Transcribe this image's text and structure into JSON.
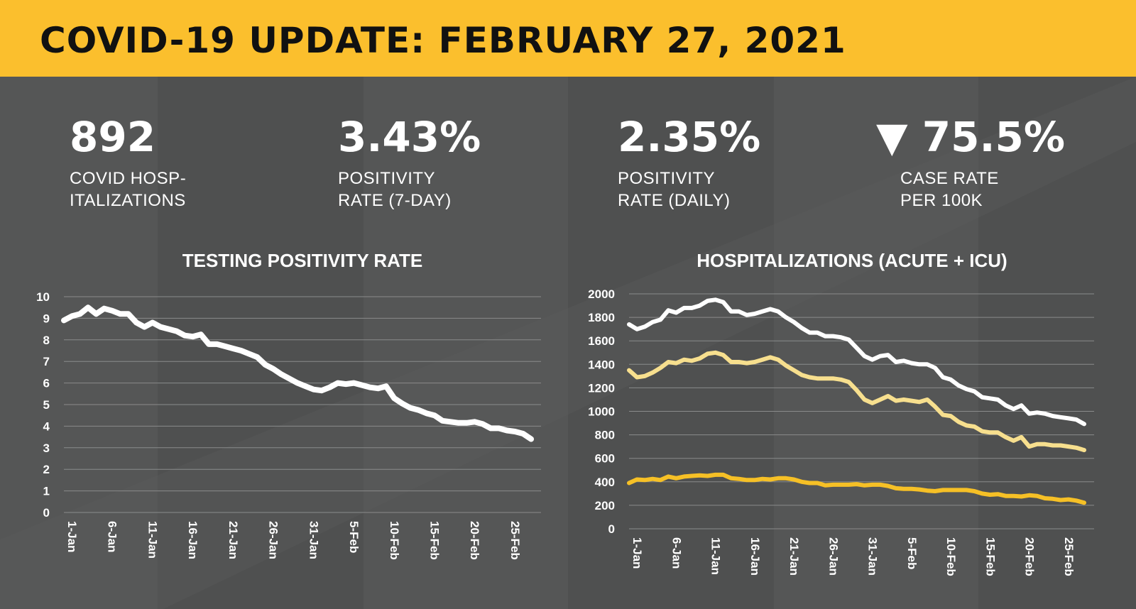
{
  "header": {
    "title": "COVID-19 UPDATE: FEBRUARY 27, 2021"
  },
  "colors": {
    "header_bg": "#fbbf2d",
    "page_bg": "#555656",
    "line_white": "#ffffff",
    "line_light_yellow": "#f7df8e",
    "line_yellow": "#f6c026"
  },
  "stats": [
    {
      "value": "892",
      "label_lines": [
        "COVID HOSP-",
        "ITALIZATIONS"
      ]
    },
    {
      "value": "3.43%",
      "label_lines": [
        "POSITIVITY",
        "RATE (7-DAY)"
      ]
    },
    {
      "value": "2.35%",
      "label_lines": [
        "POSITIVITY",
        "RATE (DAILY)"
      ]
    },
    {
      "value": "▼ 75.5%",
      "icon": "down-triangle-icon",
      "label_lines": [
        "CASE RATE",
        "PER 100K"
      ]
    }
  ],
  "chart_data": [
    {
      "type": "line",
      "title": "TESTING POSITIVITY RATE",
      "xlabel": "",
      "ylabel": "",
      "ylim": [
        0,
        10
      ],
      "yticks": [
        0,
        1,
        2,
        3,
        4,
        5,
        6,
        7,
        8,
        9,
        10
      ],
      "grid": true,
      "x_tick_labels": [
        "1-Jan",
        "6-Jan",
        "11-Jan",
        "16-Jan",
        "21-Jan",
        "26-Jan",
        "31-Jan",
        "5-Feb",
        "10-Feb",
        "15-Feb",
        "20-Feb",
        "25-Feb"
      ],
      "x_start": "1-Jan",
      "series": [
        {
          "color": "#ffffff",
          "values": [
            8.9,
            9.1,
            9.2,
            9.5,
            9.2,
            9.45,
            9.35,
            9.2,
            9.2,
            8.8,
            8.6,
            8.8,
            8.6,
            8.5,
            8.4,
            8.2,
            8.15,
            8.25,
            7.8,
            7.8,
            7.7,
            7.6,
            7.5,
            7.35,
            7.2,
            6.85,
            6.65,
            6.4,
            6.2,
            6.0,
            5.85,
            5.7,
            5.65,
            5.8,
            6.0,
            5.95,
            6.0,
            5.9,
            5.8,
            5.75,
            5.85,
            5.3,
            5.05,
            4.85,
            4.75,
            4.6,
            4.5,
            4.25,
            4.2,
            4.15,
            4.15,
            4.2,
            4.1,
            3.9,
            3.9,
            3.8,
            3.75,
            3.65,
            3.4
          ]
        }
      ]
    },
    {
      "type": "line",
      "title": "HOSPITALIZATIONS (ACUTE + ICU)",
      "xlabel": "",
      "ylabel": "",
      "ylim": [
        0,
        2000
      ],
      "yticks": [
        0,
        200,
        400,
        600,
        800,
        1000,
        1200,
        1400,
        1600,
        1800,
        2000
      ],
      "grid": true,
      "x_tick_labels": [
        "1-Jan",
        "6-Jan",
        "11-Jan",
        "16-Jan",
        "21-Jan",
        "26-Jan",
        "31-Jan",
        "5-Feb",
        "10-Feb",
        "15-Feb",
        "20-Feb",
        "25-Feb"
      ],
      "x_start": "1-Jan",
      "series": [
        {
          "color": "#ffffff",
          "values": [
            1740,
            1700,
            1720,
            1760,
            1780,
            1860,
            1840,
            1880,
            1880,
            1900,
            1940,
            1950,
            1930,
            1850,
            1850,
            1820,
            1830,
            1850,
            1870,
            1850,
            1800,
            1760,
            1710,
            1670,
            1670,
            1640,
            1640,
            1630,
            1610,
            1540,
            1470,
            1440,
            1470,
            1480,
            1420,
            1430,
            1410,
            1400,
            1400,
            1370,
            1290,
            1270,
            1220,
            1190,
            1170,
            1120,
            1110,
            1100,
            1050,
            1020,
            1050,
            980,
            990,
            980,
            960,
            950,
            940,
            930,
            892
          ]
        },
        {
          "color": "#f7df8e",
          "values": [
            1350,
            1290,
            1300,
            1330,
            1370,
            1420,
            1410,
            1440,
            1430,
            1450,
            1490,
            1500,
            1480,
            1420,
            1420,
            1410,
            1420,
            1440,
            1460,
            1440,
            1390,
            1350,
            1310,
            1290,
            1280,
            1280,
            1280,
            1270,
            1250,
            1180,
            1100,
            1070,
            1100,
            1130,
            1090,
            1100,
            1090,
            1080,
            1100,
            1040,
            970,
            960,
            910,
            880,
            870,
            830,
            820,
            820,
            780,
            750,
            780,
            700,
            720,
            720,
            710,
            710,
            700,
            690,
            670
          ]
        },
        {
          "color": "#f6c026",
          "values": [
            390,
            420,
            415,
            425,
            415,
            445,
            430,
            445,
            450,
            455,
            450,
            460,
            460,
            430,
            425,
            415,
            415,
            425,
            420,
            430,
            430,
            420,
            400,
            390,
            390,
            370,
            375,
            375,
            375,
            380,
            370,
            375,
            375,
            365,
            345,
            340,
            340,
            335,
            325,
            320,
            330,
            330,
            330,
            330,
            320,
            300,
            290,
            295,
            280,
            280,
            275,
            285,
            280,
            260,
            255,
            245,
            250,
            240,
            222
          ]
        }
      ]
    }
  ]
}
